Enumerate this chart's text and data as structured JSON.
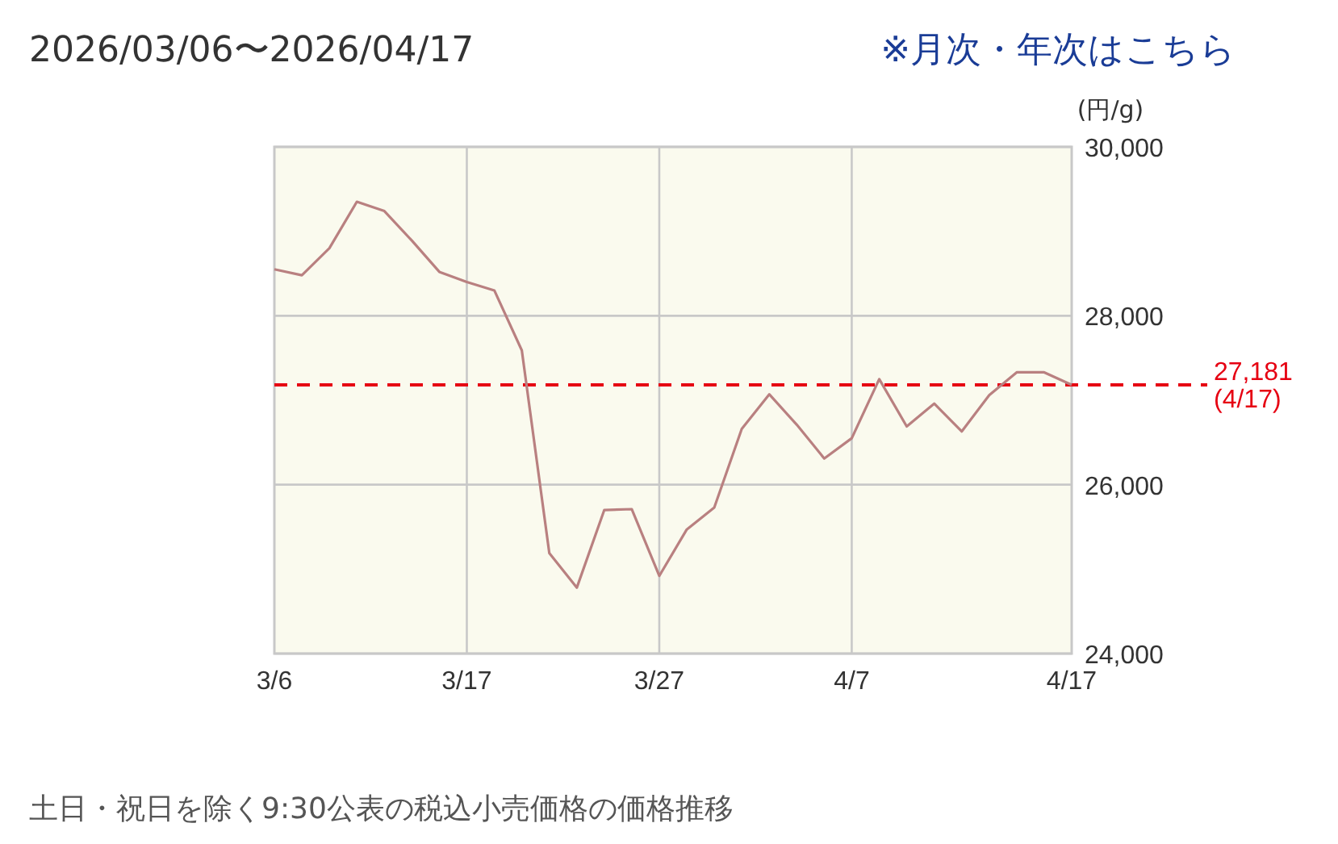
{
  "chart_data": {
    "type": "line",
    "title": "2026/03/06〜2026/04/17",
    "ylabel": "(円/g)",
    "annotations": [
      "※月次・年次はこちら",
      "土日・祝日を除く9:30公表の税込小売価格の価格推移"
    ],
    "categories": [
      "3/6",
      null,
      null,
      null,
      null,
      null,
      null,
      "3/17",
      null,
      null,
      null,
      null,
      null,
      null,
      "3/27",
      null,
      null,
      null,
      null,
      null,
      null,
      "4/7",
      null,
      null,
      null,
      null,
      null,
      null,
      null,
      "4/17"
    ],
    "series": [
      {
        "color": "#b98080",
        "values": [
          28550,
          28480,
          28800,
          29350,
          29240,
          28890,
          28520,
          28400,
          28300,
          27590,
          25190,
          24780,
          25700,
          25710,
          24920,
          25470,
          25730,
          26660,
          27070,
          26710,
          26310,
          26550,
          27250,
          26690,
          26960,
          26630,
          27060,
          27330,
          27330,
          27181
        ]
      }
    ],
    "ylim": [
      24000,
      30000
    ],
    "yticks": [
      {
        "value": 24000,
        "label": "24,000"
      },
      {
        "value": 26000,
        "label": "26,000"
      },
      {
        "value": 28000,
        "label": "28,000"
      },
      {
        "value": 30000,
        "label": "30,000"
      }
    ],
    "ref_lines": [
      {
        "axis": "y",
        "value": 27181,
        "label": "27,181\n(4/17)",
        "color": "#e60012",
        "line_style": "dashed"
      }
    ],
    "grid": true,
    "marker": "none",
    "line_style": "solid"
  }
}
